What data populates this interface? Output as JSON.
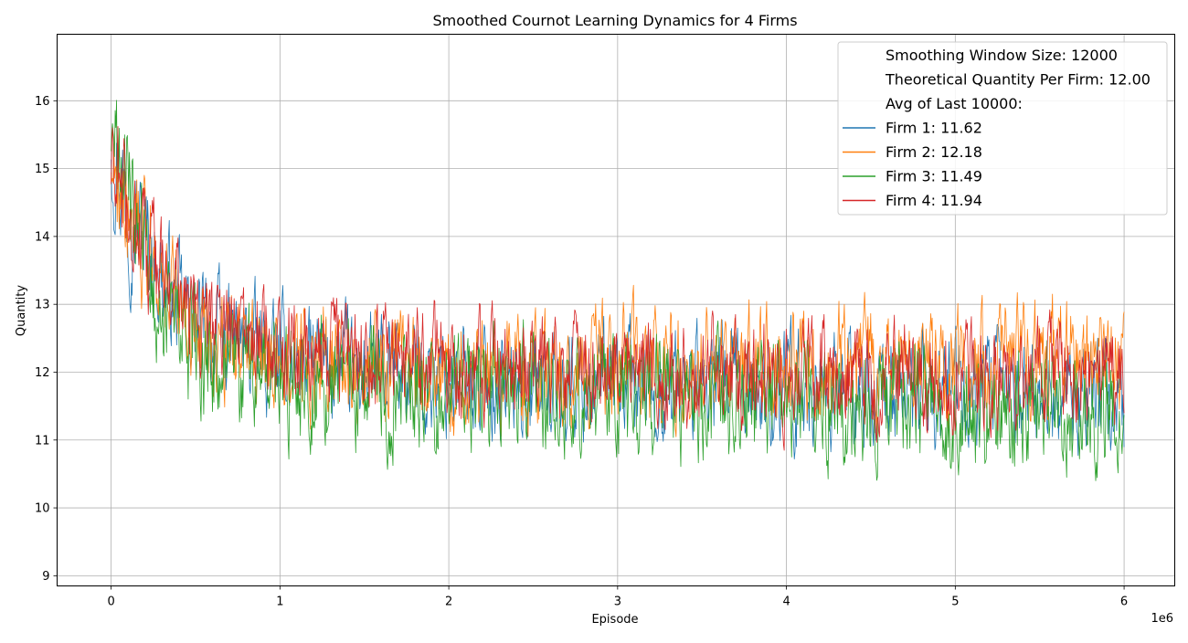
{
  "chart_data": {
    "type": "line",
    "title": "Smoothed Cournot Learning Dynamics for 4 Firms",
    "xlabel": "Episode",
    "ylabel": "Quantity",
    "x_offset_label": "1e6",
    "xlim": [
      -0.32,
      6.3
    ],
    "ylim": [
      8.85,
      16.98
    ],
    "xticks": [
      0,
      1,
      2,
      3,
      4,
      5,
      6
    ],
    "xtick_labels": [
      "0",
      "1",
      "2",
      "3",
      "4",
      "5",
      "6"
    ],
    "yticks": [
      9,
      10,
      11,
      12,
      13,
      14,
      15,
      16
    ],
    "ytick_labels": [
      "9",
      "10",
      "11",
      "12",
      "13",
      "14",
      "15",
      "16"
    ],
    "grid": true,
    "legend_position": "top-right",
    "legend_text_lines": [
      "Smoothing Window Size: 12000",
      "Theoretical Quantity Per Firm: 12.00",
      "Avg of Last 10000:"
    ],
    "series": [
      {
        "name": "Firm 1: 11.62",
        "color": "#1f77b4",
        "x": [
          0,
          0.1,
          0.2,
          0.3,
          0.4,
          0.5,
          0.75,
          1.0,
          1.5,
          2.0,
          2.5,
          3.0,
          3.5,
          4.0,
          4.5,
          5.0,
          5.5,
          6.0
        ],
        "y": [
          15.5,
          14.5,
          14.0,
          13.4,
          13.0,
          12.7,
          12.4,
          12.2,
          12.0,
          11.9,
          11.85,
          11.8,
          11.8,
          11.75,
          11.7,
          11.7,
          11.65,
          11.62
        ],
        "noise": [
          0.9,
          0.85,
          0.8,
          0.75,
          0.7,
          0.7,
          0.7,
          0.7,
          0.7,
          0.7,
          0.7,
          0.7,
          0.7,
          0.7,
          0.7,
          0.7,
          0.7,
          0.7
        ]
      },
      {
        "name": "Firm 2: 12.18",
        "color": "#ff7f0e",
        "x": [
          0,
          0.1,
          0.2,
          0.3,
          0.4,
          0.5,
          0.75,
          1.0,
          1.5,
          2.0,
          2.5,
          3.0,
          3.5,
          4.0,
          4.5,
          5.0,
          5.5,
          6.0
        ],
        "y": [
          15.2,
          14.6,
          13.9,
          13.3,
          12.9,
          12.6,
          12.4,
          12.2,
          12.1,
          12.05,
          12.0,
          12.05,
          12.1,
          12.1,
          12.15,
          12.15,
          12.2,
          12.18
        ],
        "noise": [
          0.9,
          0.85,
          0.8,
          0.75,
          0.72,
          0.7,
          0.7,
          0.7,
          0.7,
          0.7,
          0.7,
          0.7,
          0.7,
          0.7,
          0.7,
          0.7,
          0.7,
          0.7
        ]
      },
      {
        "name": "Firm 3: 11.49",
        "color": "#2ca02c",
        "x": [
          0,
          0.1,
          0.2,
          0.3,
          0.4,
          0.5,
          0.75,
          1.0,
          1.5,
          2.0,
          2.5,
          3.0,
          3.5,
          4.0,
          4.5,
          5.0,
          5.5,
          6.0
        ],
        "y": [
          15.4,
          14.7,
          13.6,
          12.9,
          12.5,
          12.2,
          12.0,
          11.9,
          11.8,
          11.75,
          11.7,
          11.65,
          11.6,
          11.6,
          11.55,
          11.55,
          11.5,
          11.49
        ],
        "noise": [
          0.9,
          0.85,
          0.8,
          0.8,
          0.75,
          0.75,
          0.75,
          0.75,
          0.75,
          0.75,
          0.75,
          0.75,
          0.75,
          0.75,
          0.75,
          0.75,
          0.75,
          0.75
        ]
      },
      {
        "name": "Firm 4: 11.94",
        "color": "#d62728",
        "x": [
          0,
          0.1,
          0.2,
          0.3,
          0.4,
          0.5,
          0.75,
          1.0,
          1.5,
          2.0,
          2.5,
          3.0,
          3.5,
          4.0,
          4.5,
          5.0,
          5.5,
          6.0
        ],
        "y": [
          14.8,
          14.4,
          13.8,
          13.3,
          13.0,
          12.8,
          12.6,
          12.4,
          12.2,
          12.1,
          12.05,
          12.0,
          12.0,
          11.95,
          11.95,
          11.95,
          11.95,
          11.94
        ],
        "noise": [
          0.8,
          0.8,
          0.75,
          0.7,
          0.68,
          0.65,
          0.65,
          0.65,
          0.65,
          0.65,
          0.65,
          0.65,
          0.65,
          0.65,
          0.65,
          0.65,
          0.65,
          0.65
        ]
      }
    ],
    "samples_per_series": 1500
  }
}
